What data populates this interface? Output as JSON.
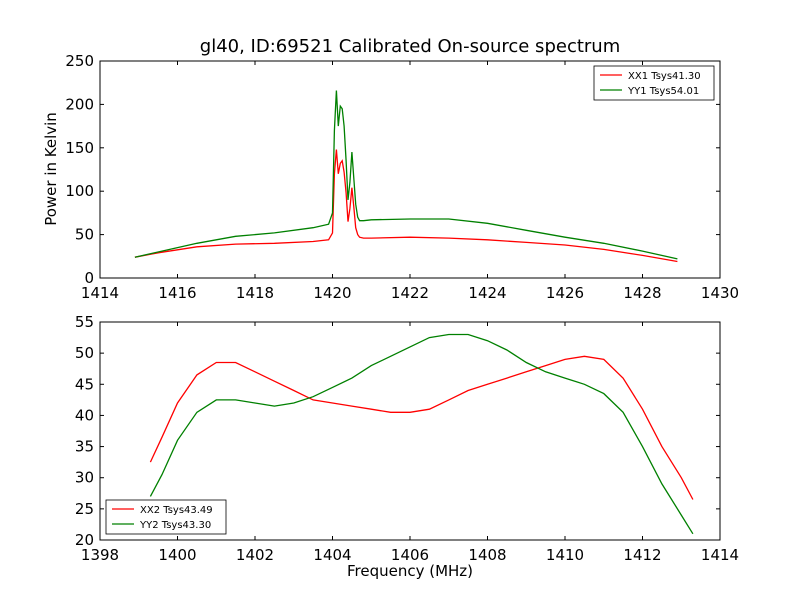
{
  "chart_data": [
    {
      "type": "line",
      "title": "gl40, ID:69521 Calibrated On-source spectrum",
      "xlabel": "",
      "ylabel": "Power in Kelvin",
      "xlim": [
        1414,
        1430
      ],
      "ylim": [
        0,
        250
      ],
      "xticks": [
        "1414",
        "1416",
        "1418",
        "1420",
        "1422",
        "1424",
        "1426",
        "1428",
        "1430"
      ],
      "yticks": [
        "0",
        "50",
        "100",
        "150",
        "200",
        "250"
      ],
      "legend_position": "top-right",
      "series": [
        {
          "name": "XX1 Tsys41.30",
          "color": "#ff0000",
          "x": [
            1414.9,
            1415.5,
            1416.5,
            1417.5,
            1418.5,
            1419.5,
            1419.9,
            1420.0,
            1420.05,
            1420.1,
            1420.15,
            1420.2,
            1420.25,
            1420.3,
            1420.35,
            1420.4,
            1420.45,
            1420.5,
            1420.55,
            1420.6,
            1420.65,
            1420.7,
            1420.8,
            1421.0,
            1422.0,
            1423.0,
            1424.0,
            1425.0,
            1426.0,
            1427.0,
            1428.0,
            1428.9
          ],
          "y": [
            24,
            29,
            36,
            39,
            40,
            42,
            44,
            52,
            120,
            148,
            120,
            132,
            135,
            122,
            98,
            65,
            80,
            104,
            82,
            58,
            50,
            47,
            46,
            46,
            47,
            46,
            44,
            41,
            38,
            33,
            26,
            19
          ]
        },
        {
          "name": "YY1 Tsys54.01",
          "color": "#008000",
          "x": [
            1414.9,
            1415.5,
            1416.5,
            1417.5,
            1418.5,
            1419.5,
            1419.9,
            1420.0,
            1420.05,
            1420.1,
            1420.15,
            1420.2,
            1420.25,
            1420.3,
            1420.35,
            1420.4,
            1420.45,
            1420.5,
            1420.55,
            1420.6,
            1420.65,
            1420.7,
            1420.8,
            1421.0,
            1422.0,
            1423.0,
            1424.0,
            1425.0,
            1426.0,
            1427.0,
            1428.0,
            1428.9
          ],
          "y": [
            24,
            30,
            40,
            48,
            52,
            58,
            62,
            75,
            170,
            216,
            175,
            198,
            195,
            175,
            135,
            90,
            110,
            145,
            115,
            85,
            70,
            66,
            66,
            67,
            68,
            68,
            63,
            55,
            47,
            40,
            31,
            22
          ]
        }
      ]
    },
    {
      "type": "line",
      "title": "",
      "xlabel": "Frequency (MHz)",
      "ylabel": "",
      "xlim": [
        1398,
        1414
      ],
      "ylim": [
        20,
        55
      ],
      "xticks": [
        "1398",
        "1400",
        "1402",
        "1404",
        "1406",
        "1408",
        "1410",
        "1412",
        "1414"
      ],
      "yticks": [
        "20",
        "25",
        "30",
        "35",
        "40",
        "45",
        "50",
        "55"
      ],
      "legend_position": "bottom-left",
      "series": [
        {
          "name": "XX2 Tsys43.49",
          "color": "#ff0000",
          "x": [
            1399.3,
            1399.6,
            1400.0,
            1400.5,
            1401.0,
            1401.5,
            1402.0,
            1402.5,
            1403.0,
            1403.5,
            1404.0,
            1404.5,
            1405.0,
            1405.5,
            1406.0,
            1406.5,
            1407.0,
            1407.5,
            1408.0,
            1408.5,
            1409.0,
            1409.5,
            1410.0,
            1410.5,
            1411.0,
            1411.5,
            1412.0,
            1412.5,
            1413.0,
            1413.3
          ],
          "y": [
            32.5,
            36.5,
            42,
            46.5,
            48.5,
            48.5,
            47,
            45.5,
            44,
            42.5,
            42,
            41.5,
            41,
            40.5,
            40.5,
            41,
            42.5,
            44,
            45,
            46,
            47,
            48,
            49,
            49.5,
            49,
            46,
            41,
            35,
            30,
            26.5
          ]
        },
        {
          "name": "YY2 Tsys43.30",
          "color": "#008000",
          "x": [
            1399.3,
            1399.6,
            1400.0,
            1400.5,
            1401.0,
            1401.5,
            1402.0,
            1402.5,
            1403.0,
            1403.5,
            1404.0,
            1404.5,
            1405.0,
            1405.5,
            1406.0,
            1406.5,
            1407.0,
            1407.5,
            1408.0,
            1408.5,
            1409.0,
            1409.5,
            1410.0,
            1410.5,
            1411.0,
            1411.5,
            1412.0,
            1412.5,
            1413.0,
            1413.3
          ],
          "y": [
            27,
            30.5,
            36,
            40.5,
            42.5,
            42.5,
            42,
            41.5,
            42,
            43,
            44.5,
            46,
            48,
            49.5,
            51,
            52.5,
            53,
            53,
            52,
            50.5,
            48.5,
            47,
            46,
            45,
            43.5,
            40.5,
            35,
            29,
            24,
            21
          ]
        }
      ]
    }
  ]
}
